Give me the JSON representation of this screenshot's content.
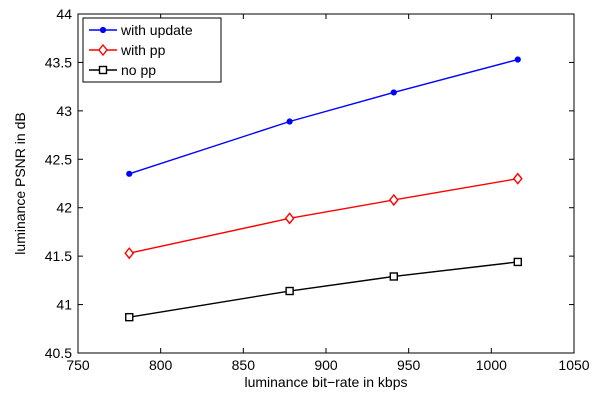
{
  "chart_data": {
    "type": "line",
    "xlabel": "luminance bit−rate in kbps",
    "ylabel": "luminance PSNR in dB",
    "xlim": [
      750,
      1050
    ],
    "ylim": [
      40.5,
      44
    ],
    "xticks": [
      750,
      800,
      850,
      900,
      950,
      1000,
      1050
    ],
    "yticks": [
      40.5,
      41,
      41.5,
      42,
      42.5,
      43,
      43.5,
      44
    ],
    "xtick_labels": [
      "750",
      "800",
      "850",
      "900",
      "950",
      "1000",
      "1050"
    ],
    "ytick_labels": [
      "40.5",
      "41",
      "41.5",
      "42",
      "42.5",
      "43",
      "43.5",
      "44"
    ],
    "grid": false,
    "legend_position": "top-left",
    "series": [
      {
        "name": "with update",
        "color": "#0000ff",
        "marker": "point",
        "x": [
          781,
          878,
          941,
          1016
        ],
        "y": [
          42.35,
          42.89,
          43.19,
          43.53
        ]
      },
      {
        "name": "with pp",
        "color": "#ff0000",
        "marker": "diamond",
        "x": [
          781,
          878,
          941,
          1016
        ],
        "y": [
          41.53,
          41.89,
          42.08,
          42.3
        ]
      },
      {
        "name": "no pp",
        "color": "#000000",
        "marker": "square",
        "x": [
          781,
          878,
          941,
          1016
        ],
        "y": [
          40.87,
          41.14,
          41.29,
          41.44
        ]
      }
    ]
  }
}
